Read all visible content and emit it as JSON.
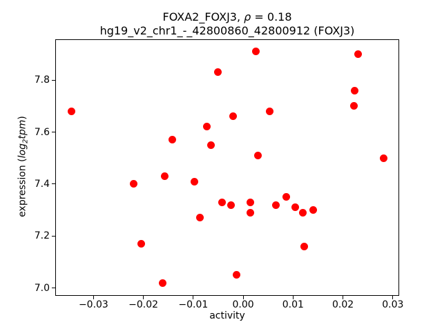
{
  "figure": {
    "title_line1": {
      "prefix": "FOXA2_FOXJ3, ",
      "rho": "ρ",
      "suffix": " = 0.18"
    },
    "title_line2": "hg19_v2_chr1_-_42800860_42800912 (FOXJ3)",
    "xlabel": "activity",
    "ylabel": {
      "prefix": "expression (",
      "log": "log",
      "sub": "2",
      "tpm": "tpm",
      "suffix": ")"
    }
  },
  "chart_data": {
    "type": "scatter",
    "title": "FOXA2_FOXJ3, ρ = 0.18",
    "subtitle": "hg19_v2_chr1_-_42800860_42800912 (FOXJ3)",
    "xlabel": "activity",
    "ylabel": "expression (log2tpm)",
    "marker_color": "#ff0000",
    "axis_color": "#000000",
    "grid": false,
    "legend": false,
    "xlim": [
      -0.0376,
      0.0312
    ],
    "ylim": [
      6.973,
      7.954
    ],
    "xticks": [
      -0.03,
      -0.02,
      -0.01,
      0.0,
      0.01,
      0.02,
      0.03
    ],
    "xtick_labels": [
      "−0.03",
      "−0.02",
      "−0.01",
      "0.00",
      "0.01",
      "0.02",
      "0.03"
    ],
    "yticks": [
      7.0,
      7.2,
      7.4,
      7.6,
      7.8
    ],
    "ytick_labels": [
      "7.0",
      "7.2",
      "7.4",
      "7.6",
      "7.8"
    ],
    "points": [
      [
        -0.0344,
        7.68
      ],
      [
        -0.0219,
        7.4
      ],
      [
        -0.0205,
        7.17
      ],
      [
        -0.0162,
        7.02
      ],
      [
        -0.0157,
        7.43
      ],
      [
        -0.0142,
        7.57
      ],
      [
        -0.0098,
        7.41
      ],
      [
        -0.0086,
        7.27
      ],
      [
        -0.0073,
        7.62
      ],
      [
        -0.0065,
        7.55
      ],
      [
        -0.005,
        7.83
      ],
      [
        -0.0043,
        7.33
      ],
      [
        -0.0025,
        7.32
      ],
      [
        -0.002,
        7.66
      ],
      [
        -0.0013,
        7.05
      ],
      [
        0.0015,
        7.33
      ],
      [
        0.0015,
        7.29
      ],
      [
        0.0026,
        7.91
      ],
      [
        0.003,
        7.51
      ],
      [
        0.0053,
        7.68
      ],
      [
        0.0066,
        7.32
      ],
      [
        0.0087,
        7.35
      ],
      [
        0.0104,
        7.31
      ],
      [
        0.0119,
        7.29
      ],
      [
        0.0122,
        7.16
      ],
      [
        0.0141,
        7.3
      ],
      [
        0.0222,
        7.7
      ],
      [
        0.0223,
        7.76
      ],
      [
        0.023,
        7.9
      ],
      [
        0.0281,
        7.5
      ]
    ]
  }
}
